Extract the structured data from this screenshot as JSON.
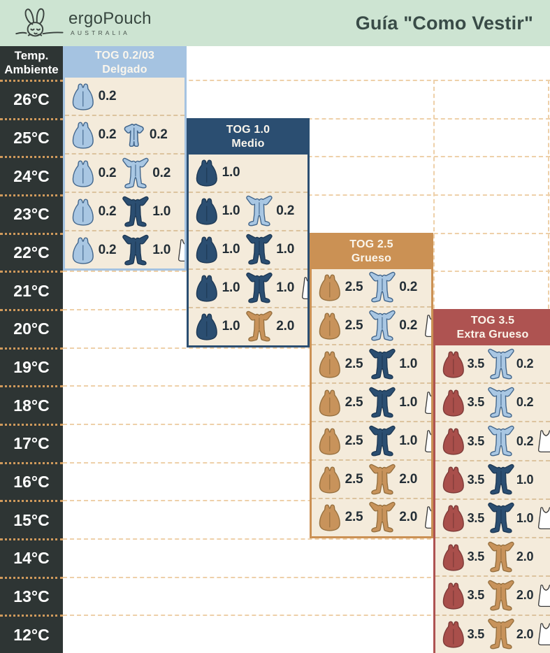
{
  "banner": {
    "brand": "ergoPouch",
    "brand_sub": "AUSTRALIA",
    "title": "Guía \"Como Vestir\""
  },
  "theme": {
    "banner_bg": "#cde4d2",
    "banner_text": "#37463f",
    "dark_col_bg": "#2e3534",
    "dark_col_dash": "#d09a5c",
    "bg_dash": "#eed0a9",
    "cell_bg": "#f4ebdb",
    "cell_dash": "#dcc39e",
    "value_color": "#232e36",
    "garments": {
      "light": {
        "fill": "#a9c7e3",
        "stroke": "#41658b"
      },
      "navy": {
        "fill": "#2b4e71",
        "stroke": "#1d3854"
      },
      "tan": {
        "fill": "#c8935b",
        "stroke": "#96703f"
      },
      "red": {
        "fill": "#a94f4b",
        "stroke": "#7c3a37"
      },
      "white": {
        "fill": "#ffffff",
        "stroke": "#3a3a3a"
      }
    }
  },
  "chart_data": {
    "type": "table",
    "title": "Guía \"Como Vestir\"",
    "temp_header_line1": "Temp.",
    "temp_header_line2": "Ambiente",
    "temps": [
      "26°C",
      "25°C",
      "24°C",
      "23°C",
      "22°C",
      "21°C",
      "20°C",
      "19°C",
      "18°C",
      "17°C",
      "16°C",
      "15°C",
      "14°C",
      "13°C",
      "12°C"
    ],
    "icon_legend": {
      "bag": "sleep-bag",
      "romper": "long-sleeve-romper",
      "romper_short": "short-sleeve-romper",
      "singlet": "singlet"
    },
    "tog_columns": [
      {
        "id": "tog02",
        "line1": "TOG 0.2/03",
        "line2": "Delgado",
        "color": "#a5c3e1",
        "cells": [
          {
            "temp": "26°C",
            "items": [
              {
                "type": "bag",
                "color": "light",
                "value": "0.2"
              }
            ]
          },
          {
            "temp": "25°C",
            "items": [
              {
                "type": "bag",
                "color": "light",
                "value": "0.2"
              },
              {
                "type": "romper_short",
                "color": "light",
                "value": "0.2"
              }
            ]
          },
          {
            "temp": "24°C",
            "items": [
              {
                "type": "bag",
                "color": "light",
                "value": "0.2"
              },
              {
                "type": "romper",
                "color": "light",
                "value": "0.2"
              }
            ]
          },
          {
            "temp": "23°C",
            "items": [
              {
                "type": "bag",
                "color": "light",
                "value": "0.2"
              },
              {
                "type": "romper",
                "color": "navy",
                "value": "1.0"
              }
            ]
          },
          {
            "temp": "22°C",
            "items": [
              {
                "type": "bag",
                "color": "light",
                "value": "0.2"
              },
              {
                "type": "romper",
                "color": "navy",
                "value": "1.0"
              },
              {
                "type": "singlet",
                "color": "white",
                "value": ""
              }
            ]
          }
        ]
      },
      {
        "id": "tog10",
        "line1": "TOG 1.0",
        "line2": "Medio",
        "color": "#2b4e71",
        "cells": [
          {
            "temp": "24°C",
            "items": [
              {
                "type": "bag",
                "color": "navy",
                "value": "1.0"
              }
            ]
          },
          {
            "temp": "23°C",
            "items": [
              {
                "type": "bag",
                "color": "navy",
                "value": "1.0"
              },
              {
                "type": "romper",
                "color": "light",
                "value": "0.2"
              }
            ]
          },
          {
            "temp": "22°C",
            "items": [
              {
                "type": "bag",
                "color": "navy",
                "value": "1.0"
              },
              {
                "type": "romper",
                "color": "navy",
                "value": "1.0"
              }
            ]
          },
          {
            "temp": "21°C",
            "items": [
              {
                "type": "bag",
                "color": "navy",
                "value": "1.0"
              },
              {
                "type": "romper",
                "color": "navy",
                "value": "1.0"
              },
              {
                "type": "singlet",
                "color": "white",
                "value": ""
              }
            ]
          },
          {
            "temp": "20°C",
            "items": [
              {
                "type": "bag",
                "color": "navy",
                "value": "1.0"
              },
              {
                "type": "romper",
                "color": "tan",
                "value": "2.0"
              }
            ]
          }
        ]
      },
      {
        "id": "tog25",
        "line1": "TOG 2.5",
        "line2": "Grueso",
        "color": "#cb9154",
        "cells": [
          {
            "temp": "21°C",
            "items": [
              {
                "type": "bag",
                "color": "tan",
                "value": "2.5"
              },
              {
                "type": "romper",
                "color": "light",
                "value": "0.2"
              }
            ]
          },
          {
            "temp": "20°C",
            "items": [
              {
                "type": "bag",
                "color": "tan",
                "value": "2.5"
              },
              {
                "type": "romper",
                "color": "light",
                "value": "0.2"
              },
              {
                "type": "singlet",
                "color": "white",
                "value": ""
              }
            ]
          },
          {
            "temp": "19°C",
            "items": [
              {
                "type": "bag",
                "color": "tan",
                "value": "2.5"
              },
              {
                "type": "romper",
                "color": "navy",
                "value": "1.0"
              }
            ]
          },
          {
            "temp": "18°C",
            "items": [
              {
                "type": "bag",
                "color": "tan",
                "value": "2.5"
              },
              {
                "type": "romper",
                "color": "navy",
                "value": "1.0"
              },
              {
                "type": "singlet",
                "color": "white",
                "value": ""
              }
            ]
          },
          {
            "temp": "17°C",
            "items": [
              {
                "type": "bag",
                "color": "tan",
                "value": "2.5"
              },
              {
                "type": "romper",
                "color": "navy",
                "value": "1.0"
              },
              {
                "type": "singlet",
                "color": "white",
                "value": ""
              }
            ]
          },
          {
            "temp": "16°C",
            "items": [
              {
                "type": "bag",
                "color": "tan",
                "value": "2.5"
              },
              {
                "type": "romper",
                "color": "tan",
                "value": "2.0"
              }
            ]
          },
          {
            "temp": "15°C",
            "items": [
              {
                "type": "bag",
                "color": "tan",
                "value": "2.5"
              },
              {
                "type": "romper",
                "color": "tan",
                "value": "2.0"
              },
              {
                "type": "singlet",
                "color": "white",
                "value": ""
              }
            ]
          }
        ]
      },
      {
        "id": "tog35",
        "line1": "TOG 3.5",
        "line2": "Extra Grueso",
        "color": "#ae5351",
        "cells": [
          {
            "temp": "19°C",
            "items": [
              {
                "type": "bag",
                "color": "red",
                "value": "3.5"
              },
              {
                "type": "romper",
                "color": "light",
                "value": "0.2"
              }
            ]
          },
          {
            "temp": "18°C",
            "items": [
              {
                "type": "bag",
                "color": "red",
                "value": "3.5"
              },
              {
                "type": "romper",
                "color": "light",
                "value": "0.2"
              }
            ]
          },
          {
            "temp": "17°C",
            "items": [
              {
                "type": "bag",
                "color": "red",
                "value": "3.5"
              },
              {
                "type": "romper",
                "color": "light",
                "value": "0.2"
              },
              {
                "type": "singlet",
                "color": "white",
                "value": ""
              }
            ]
          },
          {
            "temp": "16°C",
            "items": [
              {
                "type": "bag",
                "color": "red",
                "value": "3.5"
              },
              {
                "type": "romper",
                "color": "navy",
                "value": "1.0"
              }
            ]
          },
          {
            "temp": "15°C",
            "items": [
              {
                "type": "bag",
                "color": "red",
                "value": "3.5"
              },
              {
                "type": "romper",
                "color": "navy",
                "value": "1.0"
              },
              {
                "type": "singlet",
                "color": "white",
                "value": ""
              }
            ]
          },
          {
            "temp": "14°C",
            "items": [
              {
                "type": "bag",
                "color": "red",
                "value": "3.5"
              },
              {
                "type": "romper",
                "color": "tan",
                "value": "2.0"
              }
            ]
          },
          {
            "temp": "13°C",
            "items": [
              {
                "type": "bag",
                "color": "red",
                "value": "3.5"
              },
              {
                "type": "romper",
                "color": "tan",
                "value": "2.0"
              },
              {
                "type": "singlet",
                "color": "white",
                "value": ""
              }
            ]
          },
          {
            "temp": "12°C",
            "items": [
              {
                "type": "bag",
                "color": "red",
                "value": "3.5"
              },
              {
                "type": "romper",
                "color": "tan",
                "value": "2.0"
              },
              {
                "type": "singlet",
                "color": "white",
                "value": ""
              }
            ]
          }
        ]
      }
    ]
  }
}
